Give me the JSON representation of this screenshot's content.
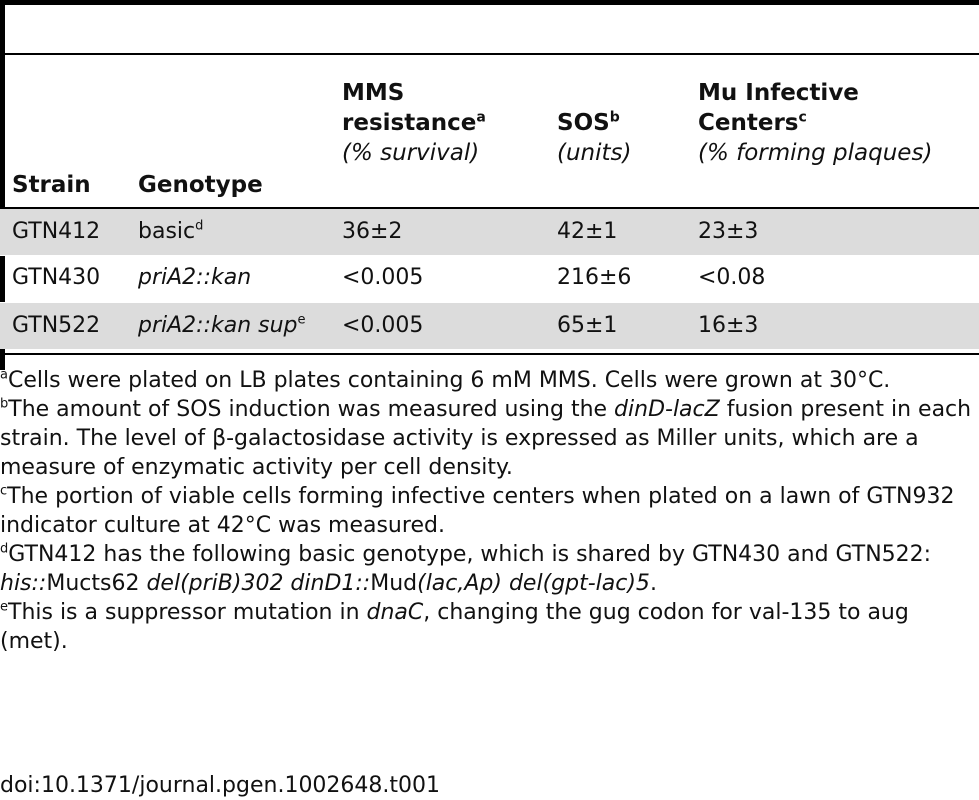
{
  "table": {
    "headers": {
      "strain": "Strain",
      "genotype": "Genotype",
      "mms": {
        "line1": "MMS",
        "line2": "resistance",
        "sup": "a",
        "unit": "(% survival)"
      },
      "sos": {
        "line1": "SOS",
        "sup": "b",
        "unit": "(units)"
      },
      "mu": {
        "line1": "Mu Infective",
        "line2": "Centers",
        "sup": "c",
        "unit": "(% forming plaques)"
      }
    },
    "rows": [
      {
        "strain": "GTN412",
        "genotype": "basic",
        "genotype_sup": "d",
        "mms": "36±2",
        "sos": "42±1",
        "mu": "23±3"
      },
      {
        "strain": "GTN430",
        "genotype": "priA2::kan",
        "genotype_sup": "",
        "mms": "<0.005",
        "sos": "216±6",
        "mu": "<0.08"
      },
      {
        "strain": "GTN522",
        "genotype": "priA2::kan sup",
        "genotype_sup": "e",
        "mms": "<0.005",
        "sos": "65±1",
        "mu": "16±3"
      }
    ]
  },
  "footnotes": {
    "a": {
      "mark": "a",
      "text": "Cells were plated on LB plates containing 6 mM MMS. Cells were grown at 30°C."
    },
    "b": {
      "mark": "b",
      "pre": "The amount of SOS induction was measured using the ",
      "italic": "dinD-lacZ",
      "post": " fusion present in each strain. The level of β-galactosidase activity is expressed as Miller units, which are a measure of enzymatic activity per cell density."
    },
    "c": {
      "mark": "c",
      "text": "The portion of viable cells forming infective centers when plated on a lawn of GTN932 indicator culture at 42°C was measured."
    },
    "d": {
      "mark": "d",
      "pre": "GTN412 has the following basic genotype, which is shared by GTN430 and GTN522: ",
      "i1": "his::",
      "t1": "Mucts62 ",
      "i2": "del(priB)302 dinD1::",
      "t2": "Mud",
      "i3": "(lac,Ap) del(gpt-lac)5",
      "post": "."
    },
    "e": {
      "mark": "e",
      "pre": "This is a suppressor mutation in ",
      "italic": "dnaC",
      "post": ", changing the gug codon for val-135 to aug (met)."
    }
  },
  "doi": "doi:10.1371/journal.pgen.1002648.t001"
}
